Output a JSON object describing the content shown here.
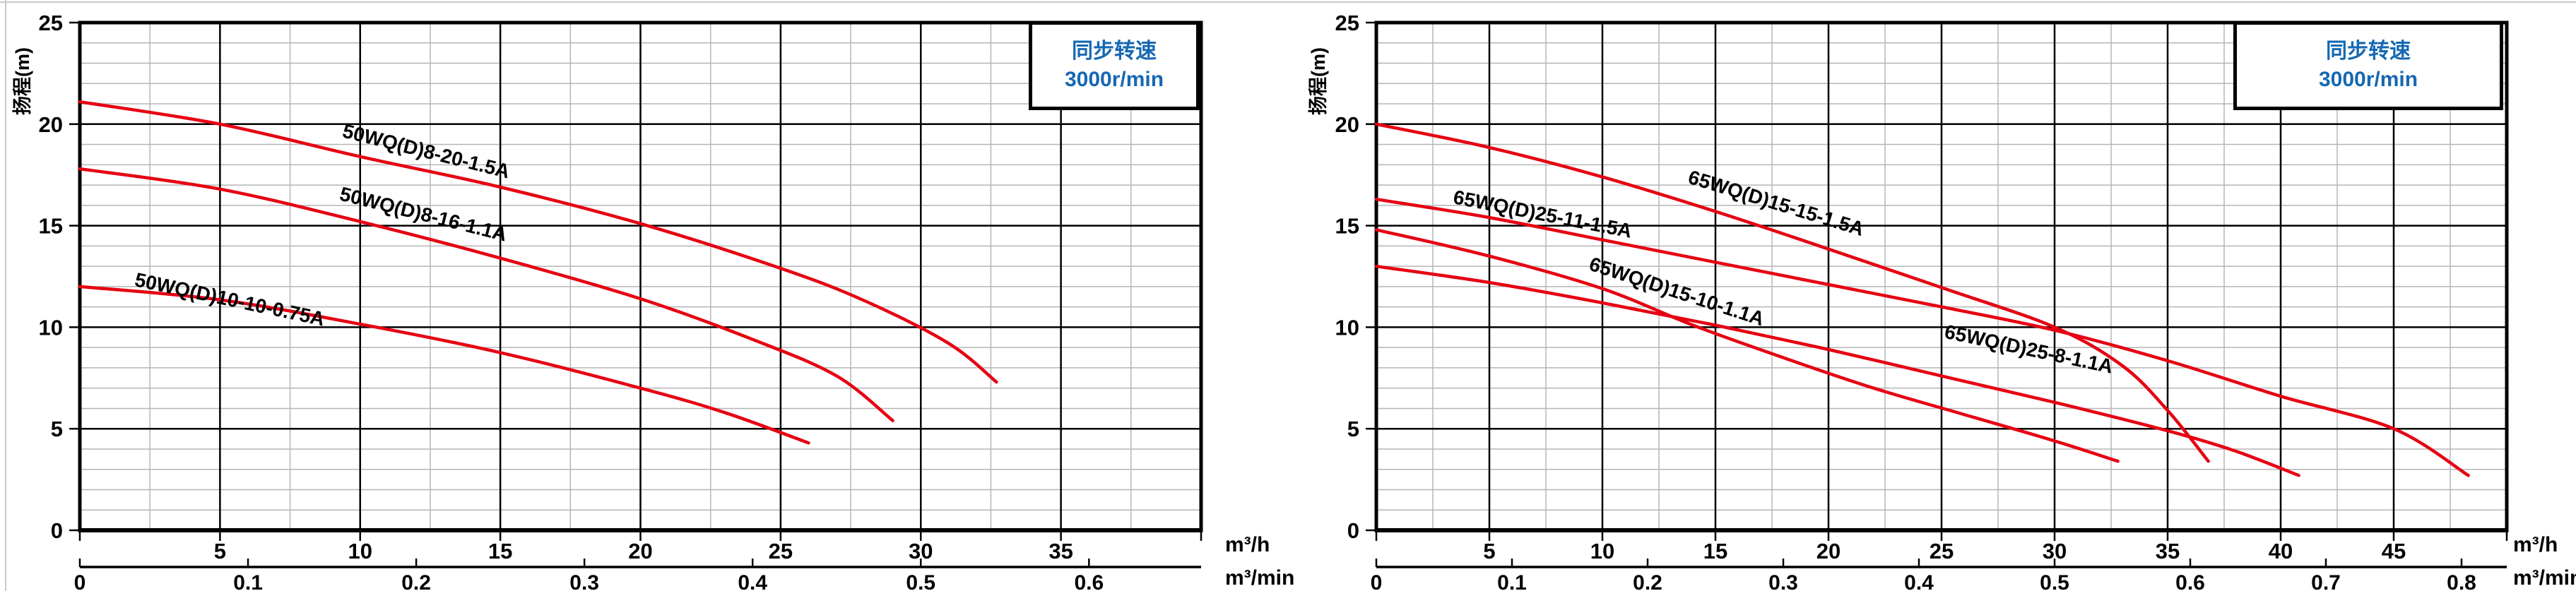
{
  "colors": {
    "curve": "#e60012",
    "grid_major": "#000000",
    "grid_minor": "#b5b5b5",
    "border": "#000000",
    "legend_text": "#1668b2",
    "axis_text": "#000000"
  },
  "chart_data": [
    {
      "type": "line",
      "title": "",
      "y_axis_title": "扬程(m)",
      "legend": {
        "line1": "同步转速",
        "line2": "3000r/min",
        "position": "top-right"
      },
      "x_unit_primary": "m³/h",
      "x_unit_secondary": "m³/min",
      "x_range": [
        0,
        40
      ],
      "y_range": [
        0,
        25
      ],
      "x_major_step": 5,
      "x_minor_step": 2.5,
      "y_major_step": 5,
      "y_minor_step": 1,
      "grid": true,
      "x_tick_labels": [
        "5",
        "10",
        "15",
        "20",
        "25",
        "30",
        "35"
      ],
      "y_tick_labels": [
        "0",
        "5",
        "10",
        "15",
        "20",
        "25"
      ],
      "secondary_tick_labels": [
        "0",
        "0.1",
        "0.2",
        "0.3",
        "0.4",
        "0.5",
        "0.6"
      ],
      "secondary_step_in_primary_units": 6,
      "series": [
        {
          "name": "50WQ(D)8-20-1.5A",
          "points": [
            [
              0,
              21.1
            ],
            [
              5,
              20.0
            ],
            [
              10,
              18.4
            ],
            [
              15,
              16.9
            ],
            [
              20,
              15.1
            ],
            [
              25,
              12.9
            ],
            [
              28,
              11.3
            ],
            [
              31,
              9.2
            ],
            [
              32.7,
              7.3
            ]
          ],
          "label": {
            "x": 12.3,
            "y": 18.35,
            "angle": 14
          }
        },
        {
          "name": "50WQ(D)8-16-1.1A",
          "points": [
            [
              0,
              17.8
            ],
            [
              5,
              16.8
            ],
            [
              10,
              15.2
            ],
            [
              15,
              13.4
            ],
            [
              20,
              11.4
            ],
            [
              24,
              9.4
            ],
            [
              27,
              7.6
            ],
            [
              29,
              5.4
            ]
          ],
          "label": {
            "x": 12.2,
            "y": 15.25,
            "angle": 14
          }
        },
        {
          "name": "50WQ(D)10-10-0.75A",
          "points": [
            [
              0,
              12.0
            ],
            [
              5,
              11.35
            ],
            [
              10,
              10.15
            ],
            [
              15,
              8.75
            ],
            [
              20,
              7.0
            ],
            [
              23,
              5.8
            ],
            [
              26,
              4.3
            ]
          ],
          "label": {
            "x": 5.3,
            "y": 11.05,
            "angle": 12
          }
        }
      ]
    },
    {
      "type": "line",
      "title": "",
      "y_axis_title": "扬程(m)",
      "legend": {
        "line1": "同步转速",
        "line2": "3000r/min",
        "position": "top-right"
      },
      "x_unit_primary": "m³/h",
      "x_unit_secondary": "m³/min",
      "x_range": [
        0,
        50
      ],
      "y_range": [
        0,
        25
      ],
      "x_major_step": 5,
      "x_minor_step": 2.5,
      "y_major_step": 5,
      "y_minor_step": 1,
      "grid": true,
      "x_tick_labels": [
        "5",
        "10",
        "15",
        "20",
        "25",
        "30",
        "35",
        "40",
        "45"
      ],
      "y_tick_labels": [
        "0",
        "5",
        "10",
        "15",
        "20",
        "25"
      ],
      "secondary_tick_labels": [
        "0",
        "0.1",
        "0.2",
        "0.3",
        "0.4",
        "0.5",
        "0.6",
        "0.7",
        "0.8"
      ],
      "secondary_step_in_primary_units": 6,
      "series": [
        {
          "name": "65WQ(D)15-15-1.5A",
          "points": [
            [
              0,
              20.0
            ],
            [
              5,
              18.85
            ],
            [
              10,
              17.4
            ],
            [
              15,
              15.7
            ],
            [
              20,
              13.85
            ],
            [
              25,
              11.95
            ],
            [
              30,
              10.0
            ],
            [
              33,
              8.1
            ],
            [
              35,
              5.9
            ],
            [
              36.8,
              3.4
            ]
          ],
          "label": {
            "x": 17.6,
            "y": 15.8,
            "angle": 17
          }
        },
        {
          "name": "65WQ(D)25-11-1.5A",
          "points": [
            [
              0,
              16.3
            ],
            [
              5,
              15.4
            ],
            [
              10,
              14.3
            ],
            [
              15,
              13.2
            ],
            [
              20,
              12.1
            ],
            [
              25,
              11.0
            ],
            [
              30,
              9.85
            ],
            [
              35,
              8.35
            ],
            [
              40,
              6.6
            ],
            [
              45,
              5.0
            ],
            [
              48.3,
              2.7
            ]
          ],
          "label": {
            "x": 7.3,
            "y": 15.25,
            "angle": 11
          }
        },
        {
          "name": "65WQ(D)15-10-1.1A",
          "points": [
            [
              0,
              14.8
            ],
            [
              5,
              13.5
            ],
            [
              10,
              11.9
            ],
            [
              14,
              10.1
            ],
            [
              18,
              8.5
            ],
            [
              22,
              7.0
            ],
            [
              26,
              5.7
            ],
            [
              30,
              4.4
            ],
            [
              32.8,
              3.4
            ]
          ],
          "label": {
            "x": 13.2,
            "y": 11.45,
            "angle": 18
          }
        },
        {
          "name": "65WQ(D)25-8-1.1A",
          "points": [
            [
              0,
              13.0
            ],
            [
              5,
              12.2
            ],
            [
              10,
              11.2
            ],
            [
              15,
              10.1
            ],
            [
              20,
              8.9
            ],
            [
              25,
              7.6
            ],
            [
              30,
              6.3
            ],
            [
              35,
              4.9
            ],
            [
              38,
              3.9
            ],
            [
              40.8,
              2.7
            ]
          ],
          "label": {
            "x": 28.8,
            "y": 8.6,
            "angle": 12
          }
        }
      ]
    }
  ]
}
